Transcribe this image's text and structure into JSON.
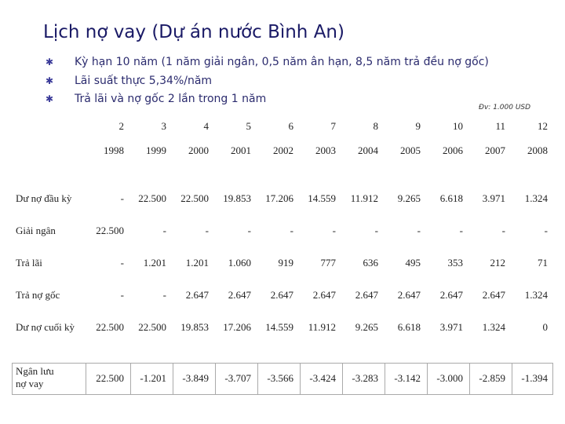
{
  "header": {
    "title": "Lịch nợ vay (Dự án nước Bình An)",
    "bullets": [
      "Kỳ hạn 10 năm (1 năm giải ngân, 0,5 năm ân hạn, 8,5 năm trả đều nợ gốc)",
      "Lãi suất thực 5,34%/năm",
      "Trả lãi và nợ gốc 2 lần trong 1 năm"
    ],
    "unit_note": "Đv: 1.000 USD"
  },
  "table": {
    "periods": [
      "2",
      "3",
      "4",
      "5",
      "6",
      "7",
      "8",
      "9",
      "10",
      "11",
      "12"
    ],
    "years": [
      "1998",
      "1999",
      "2000",
      "2001",
      "2002",
      "2003",
      "2004",
      "2005",
      "2006",
      "2007",
      "2008"
    ],
    "rows": [
      [
        "Dư nợ đầu kỳ",
        "-",
        "22.500",
        "22.500",
        "19.853",
        "17.206",
        "14.559",
        "11.912",
        "9.265",
        "6.618",
        "3.971",
        "1.324"
      ],
      [
        "Giải ngân",
        "22.500",
        "-",
        "-",
        "-",
        "-",
        "-",
        "-",
        "-",
        "-",
        "-",
        "-"
      ],
      [
        "Trả lãi",
        "-",
        "1.201",
        "1.201",
        "1.060",
        "919",
        "777",
        "636",
        "495",
        "353",
        "212",
        "71"
      ],
      [
        "Trả nợ gốc",
        "-",
        "-",
        "2.647",
        "2.647",
        "2.647",
        "2.647",
        "2.647",
        "2.647",
        "2.647",
        "2.647",
        "1.324"
      ],
      [
        "Dư nợ cuối kỳ",
        "22.500",
        "22.500",
        "19.853",
        "17.206",
        "14.559",
        "11.912",
        "9.265",
        "6.618",
        "3.971",
        "1.324",
        "0"
      ],
      [
        "Ngân lưu nợ vay",
        "22.500",
        "-1.201",
        "-3.849",
        "-3.707",
        "-3.566",
        "-3.424",
        "-3.283",
        "-3.142",
        "-3.000",
        "-2.859",
        "-1.394"
      ]
    ]
  }
}
